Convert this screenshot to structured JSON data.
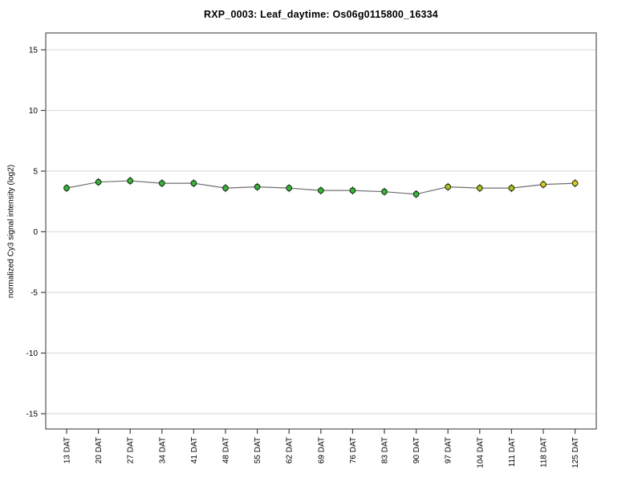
{
  "chart_data": {
    "type": "line",
    "title": "RXP_0003: Leaf_daytime: Os06g0115800_16334",
    "ylabel": "normalized Cy3 signal intensity (log2)",
    "xlabel": "",
    "categories": [
      "13 DAT",
      "20 DAT",
      "27 DAT",
      "34 DAT",
      "41 DAT",
      "48 DAT",
      "55 DAT",
      "62 DAT",
      "69 DAT",
      "76 DAT",
      "83 DAT",
      "90 DAT",
      "97 DAT",
      "104 DAT",
      "111 DAT",
      "118 DAT",
      "125 DAT"
    ],
    "values": [
      3.6,
      4.1,
      4.2,
      4.0,
      4.0,
      3.6,
      3.7,
      3.6,
      3.4,
      3.4,
      3.3,
      3.1,
      3.7,
      3.6,
      3.6,
      3.9,
      4.0
    ],
    "point_colors": [
      "#2abf2a",
      "#2abf2a",
      "#2abf2a",
      "#2abf2a",
      "#2abf2a",
      "#2abf2a",
      "#2abf2a",
      "#2abf2a",
      "#2abf2a",
      "#2abf2a",
      "#2abf2a",
      "#2abf2a",
      "#b0c800",
      "#b0c800",
      "#b0c800",
      "#d8d200",
      "#d8d200"
    ],
    "y_ticks": [
      15,
      10,
      5,
      0,
      -5,
      -10,
      -15
    ],
    "ylim": [
      -16.3,
      16.4
    ],
    "grid": true,
    "legend": "none",
    "line_color": "#6e6e6e",
    "marker_outline": "#1a1a1a",
    "error_bar_color": "#333333",
    "grid_color": "#e4e4e4",
    "box_color": "#555555",
    "tick_color": "#444444",
    "tick_label_color": "#000000"
  }
}
